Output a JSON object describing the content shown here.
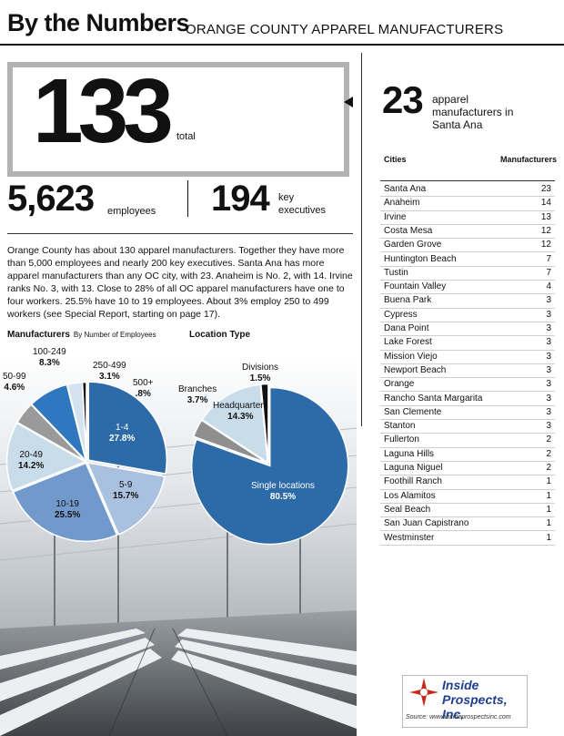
{
  "header": {
    "title": "By the Numbers",
    "subtitle": "ORANGE COUNTY APPAREL MANUFACTURERS"
  },
  "stats": {
    "total": "133",
    "total_label": "total",
    "santa_ana_count": "23",
    "santa_ana_label": "apparel manufacturers in Santa Ana",
    "employees": "5,623",
    "employees_label": "employees",
    "executives": "194",
    "executives_label": "key executives"
  },
  "summary": "Orange County has about 130 apparel manufacturers. Together they have more than 5,000 employees and nearly 200 key executives. Santa Ana has more apparel manufacturers than any OC city, with 23. Anaheim is No. 2, with 14. Irvine ranks No. 3, with 13. Close to 28% of all OC apparel manufacturers have one to four workers. 25.5% have 10 to 19 employees. About 3% employ 250 to 499 workers (see Special Report, starting on page 17).",
  "table": {
    "header_city": "Cities",
    "header_count": "Manufacturers",
    "rows": [
      {
        "city": "Santa Ana",
        "count": "23"
      },
      {
        "city": "Anaheim",
        "count": "14"
      },
      {
        "city": "Irvine",
        "count": "13"
      },
      {
        "city": "Costa Mesa",
        "count": "12"
      },
      {
        "city": "Garden Grove",
        "count": "12"
      },
      {
        "city": "Huntington Beach",
        "count": "7"
      },
      {
        "city": "Tustin",
        "count": "7"
      },
      {
        "city": "Fountain Valley",
        "count": "4"
      },
      {
        "city": "Buena Park",
        "count": "3"
      },
      {
        "city": "Cypress",
        "count": "3"
      },
      {
        "city": "Dana Point",
        "count": "3"
      },
      {
        "city": "Lake Forest",
        "count": "3"
      },
      {
        "city": "Mission Viejo",
        "count": "3"
      },
      {
        "city": "Newport Beach",
        "count": "3"
      },
      {
        "city": "Orange",
        "count": "3"
      },
      {
        "city": "Rancho Santa Margarita",
        "count": "3"
      },
      {
        "city": "San Clemente",
        "count": "3"
      },
      {
        "city": "Stanton",
        "count": "3"
      },
      {
        "city": "Fullerton",
        "count": "2"
      },
      {
        "city": "Laguna Hills",
        "count": "2"
      },
      {
        "city": "Laguna Niguel",
        "count": "2"
      },
      {
        "city": "Foothill Ranch",
        "count": "1"
      },
      {
        "city": "Los Alamitos",
        "count": "1"
      },
      {
        "city": "Seal Beach",
        "count": "1"
      },
      {
        "city": "San Juan Capistrano",
        "count": "1"
      },
      {
        "city": "Westminster",
        "count": "1"
      }
    ]
  },
  "logo": {
    "name": "Inside Prospects, Inc.",
    "source": "Source: www.insideprospectsinc.com"
  },
  "chart_data": [
    {
      "type": "pie",
      "title": "Manufacturers",
      "subtitle": "By Number of Employees",
      "slices": [
        {
          "label": "1-4",
          "pct_label": "27.8%",
          "value": 27.8,
          "color": "#2d6aa8"
        },
        {
          "label": "5-9",
          "pct_label": "15.7%",
          "value": 15.7,
          "color": "#aac0df"
        },
        {
          "label": "10-19",
          "pct_label": "25.5%",
          "value": 25.5,
          "color": "#7299cc"
        },
        {
          "label": "20-49",
          "pct_label": "14.2%",
          "value": 14.2,
          "color": "#c9dcea"
        },
        {
          "label": "50-99",
          "pct_label": "4.6%",
          "value": 4.6,
          "color": "#9a9a9a"
        },
        {
          "label": "100-249",
          "pct_label": "8.3%",
          "value": 8.3,
          "color": "#2f78bf"
        },
        {
          "label": "250-499",
          "pct_label": "3.1%",
          "value": 3.1,
          "color": "#d4e3ef"
        },
        {
          "label": "500+",
          "pct_label": ".8%",
          "value": 0.8,
          "color": "#111111"
        }
      ]
    },
    {
      "type": "pie",
      "title": "Location Type",
      "slices": [
        {
          "label": "Single locations",
          "pct_label": "80.5%",
          "value": 80.5,
          "color": "#2d6aa8"
        },
        {
          "label": "Branches",
          "pct_label": "3.7%",
          "value": 3.7,
          "color": "#8f8f8f"
        },
        {
          "label": "Headquarters",
          "pct_label": "14.3%",
          "value": 14.3,
          "color": "#c9dcea"
        },
        {
          "label": "Divisions",
          "pct_label": "1.5%",
          "value": 1.5,
          "color": "#111111"
        }
      ]
    }
  ]
}
